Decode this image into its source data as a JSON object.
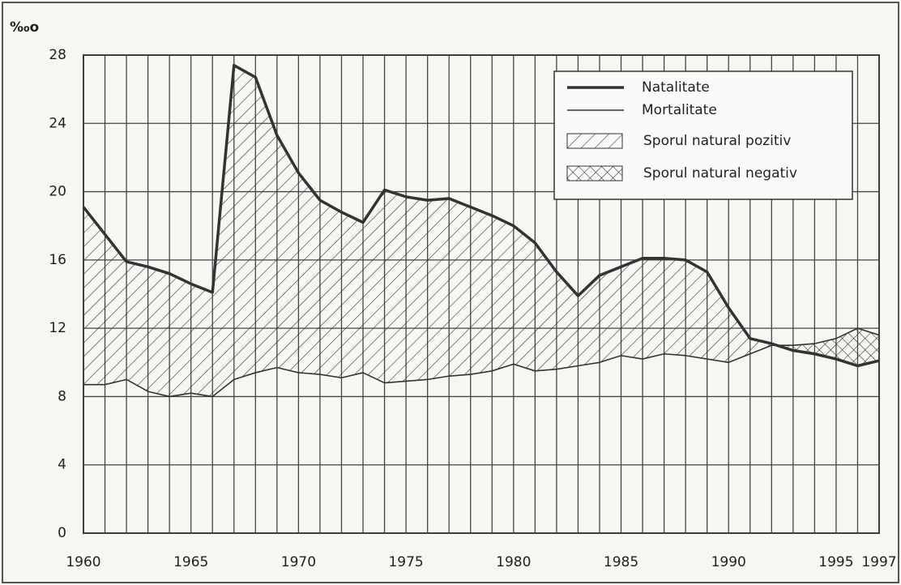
{
  "chart_data": {
    "type": "line",
    "ylabel": "‰o",
    "x": [
      1960,
      1961,
      1962,
      1963,
      1964,
      1965,
      1966,
      1967,
      1968,
      1969,
      1970,
      1971,
      1972,
      1973,
      1974,
      1975,
      1976,
      1977,
      1978,
      1979,
      1980,
      1981,
      1982,
      1983,
      1984,
      1985,
      1986,
      1987,
      1988,
      1989,
      1990,
      1991,
      1992,
      1993,
      1994,
      1995,
      1996,
      1997
    ],
    "series": [
      {
        "name": "Natalitate",
        "color": "#333",
        "values": [
          19.1,
          17.5,
          15.9,
          15.6,
          15.2,
          14.6,
          14.1,
          27.4,
          26.7,
          23.3,
          21.1,
          19.5,
          18.8,
          18.2,
          20.1,
          19.7,
          19.5,
          19.6,
          19.1,
          18.6,
          18.0,
          17.0,
          15.3,
          13.9,
          15.1,
          15.6,
          16.1,
          16.1,
          16.0,
          15.3,
          13.2,
          11.4,
          11.1,
          10.7,
          10.5,
          10.2,
          9.8,
          10.1
        ],
        "width": 3.5
      },
      {
        "name": "Mortalitate",
        "color": "#333",
        "values": [
          8.7,
          8.7,
          9.0,
          8.3,
          8.0,
          8.2,
          8.0,
          9.0,
          9.4,
          9.7,
          9.4,
          9.3,
          9.1,
          9.4,
          8.8,
          8.9,
          9.0,
          9.2,
          9.3,
          9.5,
          9.9,
          9.5,
          9.6,
          9.8,
          10.0,
          10.4,
          10.2,
          10.5,
          10.4,
          10.2,
          10.0,
          10.5,
          11.0,
          11.0,
          11.1,
          11.4,
          12.0,
          11.6
        ],
        "width": 1.6
      }
    ],
    "areas": [
      {
        "name": "Sporul natural pozitiv"
      },
      {
        "name": "Sporul natural negativ"
      }
    ],
    "xlim": [
      1960,
      1997
    ],
    "xticks": [
      1960,
      1965,
      1970,
      1975,
      1980,
      1985,
      1990,
      1995,
      1997
    ],
    "ylim": [
      0,
      28
    ],
    "yticks": [
      0,
      4,
      8,
      12,
      16,
      20,
      24,
      28
    ],
    "grid": true
  }
}
